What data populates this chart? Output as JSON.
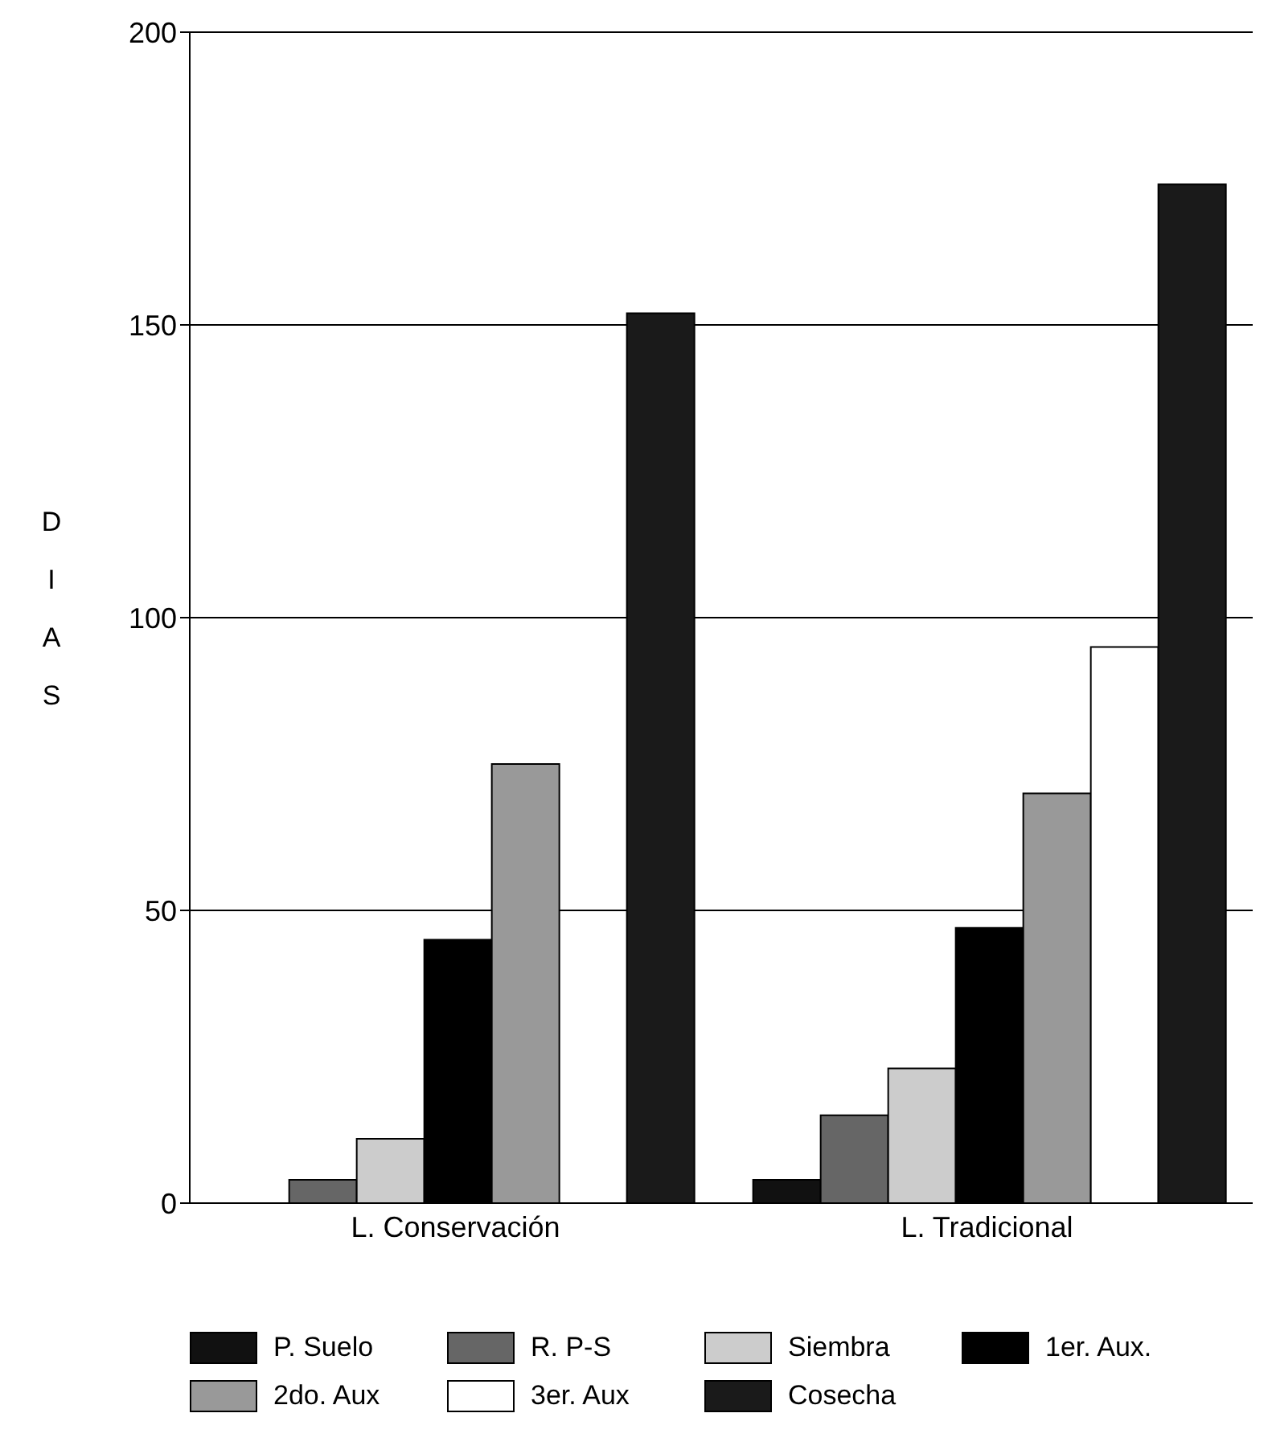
{
  "chart_data": {
    "type": "bar",
    "ylabel": "DIAS",
    "categories": [
      "L. Conservación",
      "L. Tradicional"
    ],
    "series": [
      {
        "name": "P. Suelo",
        "color": "#111111",
        "values": [
          0,
          4
        ]
      },
      {
        "name": "R. P-S",
        "color": "#666666",
        "values": [
          4,
          15
        ]
      },
      {
        "name": "Siembra",
        "color": "#cccccc",
        "values": [
          11,
          23
        ]
      },
      {
        "name": "1er. Aux.",
        "color": "#000000",
        "values": [
          45,
          47
        ]
      },
      {
        "name": "2do. Aux",
        "color": "#999999",
        "values": [
          75,
          70
        ]
      },
      {
        "name": "3er. Aux",
        "color": "#ffffff",
        "values": [
          0,
          95
        ]
      },
      {
        "name": "Cosecha",
        "color": "#1a1a1a",
        "values": [
          152,
          174
        ]
      }
    ],
    "ylim": [
      0,
      200
    ],
    "yticks": [
      0,
      50,
      100,
      150,
      200
    ],
    "grid": "y",
    "legend": "bottom"
  }
}
